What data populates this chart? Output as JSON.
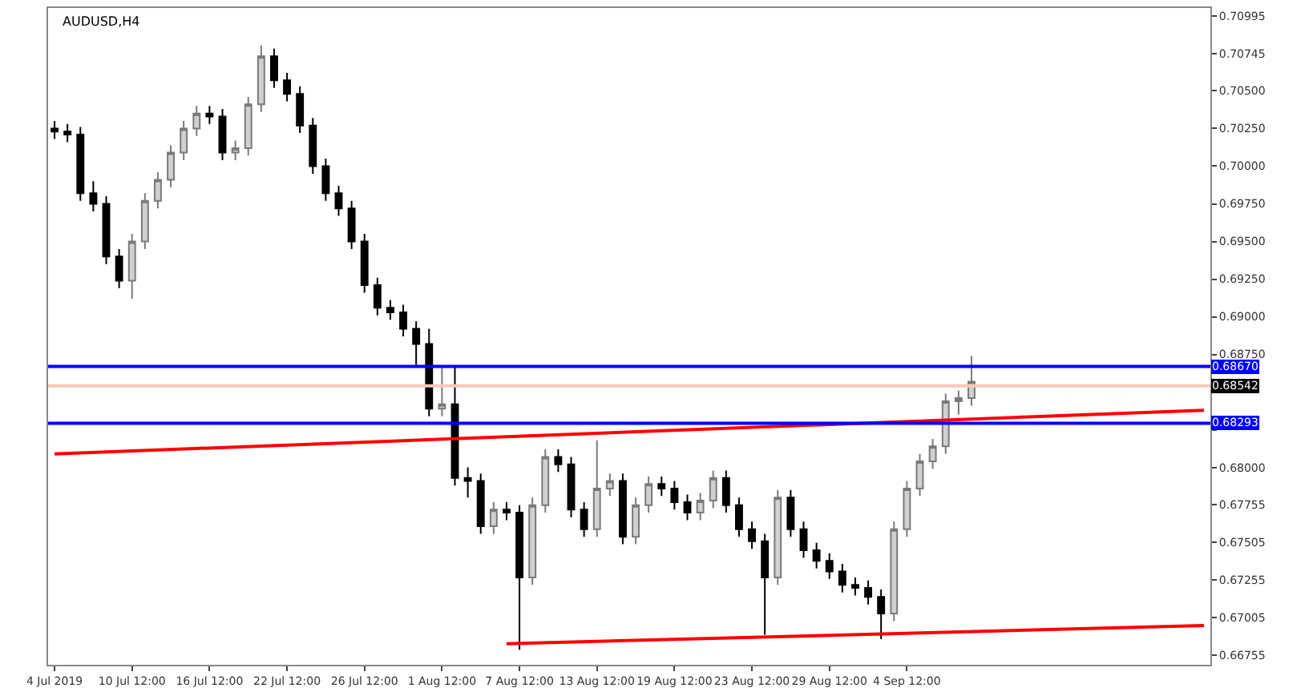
{
  "chart_data": {
    "type": "candlestick",
    "title": "AUDUSD,H4",
    "categories": [
      "4 Jul 2019",
      null,
      null,
      null,
      null,
      null,
      "10 Jul 12:00",
      null,
      null,
      null,
      null,
      null,
      "16 Jul 12:00",
      null,
      null,
      null,
      null,
      null,
      "22 Jul 12:00",
      null,
      null,
      null,
      null,
      null,
      "26 Jul 12:00",
      null,
      null,
      null,
      null,
      null,
      "1 Aug 12:00",
      null,
      null,
      null,
      null,
      null,
      "7 Aug 12:00",
      null,
      null,
      null,
      null,
      null,
      "13 Aug 12:00",
      null,
      null,
      null,
      null,
      null,
      "19 Aug 12:00",
      null,
      null,
      null,
      null,
      null,
      "23 Aug 12:00",
      null,
      null,
      null,
      null,
      null,
      "29 Aug 12:00",
      null,
      null,
      null,
      null,
      null,
      "4 Sep 12:00",
      null,
      null,
      null,
      null,
      null,
      null,
      null,
      null,
      null,
      null,
      null,
      null,
      null,
      null,
      null,
      null,
      null,
      null,
      null,
      null,
      null,
      null,
      null
    ],
    "ohlc": [
      [
        0.7025,
        0.703,
        0.7018,
        0.7023
      ],
      [
        0.7023,
        0.7028,
        0.7016,
        0.7021
      ],
      [
        0.7021,
        0.7026,
        0.6977,
        0.6982
      ],
      [
        0.6982,
        0.699,
        0.697,
        0.6975
      ],
      [
        0.6975,
        0.698,
        0.6935,
        0.694
      ],
      [
        0.694,
        0.6945,
        0.6919,
        0.6924
      ],
      [
        0.6924,
        0.6955,
        0.6912,
        0.695
      ],
      [
        0.695,
        0.6982,
        0.6945,
        0.6977
      ],
      [
        0.6977,
        0.6996,
        0.6972,
        0.6991
      ],
      [
        0.6991,
        0.7014,
        0.6986,
        0.7009
      ],
      [
        0.7009,
        0.703,
        0.7004,
        0.7025
      ],
      [
        0.7025,
        0.704,
        0.702,
        0.7035
      ],
      [
        0.7035,
        0.704,
        0.7028,
        0.7033
      ],
      [
        0.7033,
        0.7038,
        0.7004,
        0.7009
      ],
      [
        0.7009,
        0.7017,
        0.7004,
        0.7012
      ],
      [
        0.7012,
        0.7046,
        0.7007,
        0.7041
      ],
      [
        0.7041,
        0.708,
        0.7036,
        0.7073
      ],
      [
        0.7073,
        0.7078,
        0.7052,
        0.7057
      ],
      [
        0.7057,
        0.7062,
        0.7043,
        0.7048
      ],
      [
        0.7048,
        0.7053,
        0.7022,
        0.7027
      ],
      [
        0.7027,
        0.7032,
        0.6995,
        0.7
      ],
      [
        0.7,
        0.7005,
        0.6977,
        0.6982
      ],
      [
        0.6982,
        0.6987,
        0.6967,
        0.6972
      ],
      [
        0.6972,
        0.6977,
        0.6945,
        0.695
      ],
      [
        0.695,
        0.6955,
        0.6916,
        0.6921
      ],
      [
        0.6921,
        0.6926,
        0.6901,
        0.6906
      ],
      [
        0.6906,
        0.6911,
        0.6898,
        0.6903
      ],
      [
        0.6903,
        0.6908,
        0.6887,
        0.6892
      ],
      [
        0.6892,
        0.6897,
        0.6868,
        0.6882
      ],
      [
        0.6882,
        0.6892,
        0.6834,
        0.6839
      ],
      [
        0.6839,
        0.6867,
        0.6834,
        0.6842
      ],
      [
        0.6842,
        0.6867,
        0.6788,
        0.6793
      ],
      [
        0.6793,
        0.68,
        0.678,
        0.6791
      ],
      [
        0.6791,
        0.6796,
        0.6756,
        0.6761
      ],
      [
        0.6761,
        0.6777,
        0.6756,
        0.6772
      ],
      [
        0.6772,
        0.6777,
        0.6765,
        0.677
      ],
      [
        0.677,
        0.6775,
        0.6679,
        0.6727
      ],
      [
        0.6727,
        0.678,
        0.6722,
        0.6775
      ],
      [
        0.6775,
        0.6812,
        0.677,
        0.6807
      ],
      [
        0.6807,
        0.6812,
        0.6797,
        0.6802
      ],
      [
        0.6802,
        0.6807,
        0.6767,
        0.6772
      ],
      [
        0.6772,
        0.6777,
        0.6754,
        0.6759
      ],
      [
        0.6759,
        0.6818,
        0.6754,
        0.6786
      ],
      [
        0.6786,
        0.6796,
        0.6781,
        0.6791
      ],
      [
        0.6791,
        0.6796,
        0.6749,
        0.6754
      ],
      [
        0.6754,
        0.678,
        0.6749,
        0.6775
      ],
      [
        0.6775,
        0.6794,
        0.677,
        0.6789
      ],
      [
        0.6789,
        0.6794,
        0.6781,
        0.6786
      ],
      [
        0.6786,
        0.6791,
        0.6772,
        0.6777
      ],
      [
        0.6777,
        0.6782,
        0.6765,
        0.677
      ],
      [
        0.677,
        0.6783,
        0.6765,
        0.6778
      ],
      [
        0.6778,
        0.6798,
        0.6773,
        0.6793
      ],
      [
        0.6793,
        0.6798,
        0.677,
        0.6775
      ],
      [
        0.6775,
        0.678,
        0.6754,
        0.6759
      ],
      [
        0.6759,
        0.6764,
        0.6746,
        0.6751
      ],
      [
        0.6751,
        0.6756,
        0.6689,
        0.6727
      ],
      [
        0.6727,
        0.6785,
        0.6722,
        0.678
      ],
      [
        0.678,
        0.6785,
        0.6754,
        0.6759
      ],
      [
        0.6759,
        0.6764,
        0.674,
        0.6745
      ],
      [
        0.6745,
        0.675,
        0.6733,
        0.6738
      ],
      [
        0.6738,
        0.6743,
        0.6726,
        0.6731
      ],
      [
        0.6731,
        0.6736,
        0.6717,
        0.6722
      ],
      [
        0.6722,
        0.6727,
        0.6715,
        0.672
      ],
      [
        0.672,
        0.6725,
        0.6709,
        0.6714
      ],
      [
        0.6714,
        0.6719,
        0.6686,
        0.6703
      ],
      [
        0.6703,
        0.6764,
        0.6698,
        0.6759
      ],
      [
        0.6759,
        0.6791,
        0.6754,
        0.6786
      ],
      [
        0.6786,
        0.6809,
        0.6781,
        0.6804
      ],
      [
        0.6804,
        0.6819,
        0.6799,
        0.6814
      ],
      [
        0.6814,
        0.6849,
        0.6809,
        0.6844
      ],
      [
        0.6844,
        0.6851,
        0.6835,
        0.6846
      ],
      [
        0.6846,
        0.6874,
        0.6841,
        0.6857
      ],
      null,
      null,
      null,
      null,
      null,
      null,
      null,
      null,
      null,
      null,
      null,
      null,
      null,
      null,
      null,
      null,
      null,
      null
    ],
    "series": [
      {
        "type": "line",
        "color": "#ff0000",
        "values": [
          0.6809,
          null,
          null,
          null,
          null,
          null,
          null,
          null,
          null,
          null,
          null,
          null,
          null,
          null,
          null,
          null,
          null,
          null,
          null,
          null,
          null,
          null,
          null,
          null,
          null,
          null,
          null,
          null,
          null,
          null,
          null,
          null,
          null,
          null,
          null,
          null,
          null,
          null,
          null,
          null,
          null,
          null,
          null,
          null,
          null,
          null,
          null,
          null,
          null,
          null,
          null,
          null,
          null,
          null,
          null,
          null,
          null,
          null,
          null,
          null,
          null,
          null,
          null,
          null,
          null,
          null,
          null,
          null,
          null,
          null,
          null,
          null,
          null,
          null,
          null,
          null,
          null,
          null,
          null,
          null,
          null,
          null,
          null,
          null,
          null,
          null,
          null,
          null,
          null,
          0.6838
        ]
      },
      {
        "type": "line",
        "color": "#ff0000",
        "values": [
          null,
          null,
          null,
          null,
          null,
          null,
          null,
          null,
          null,
          null,
          null,
          null,
          null,
          null,
          null,
          null,
          null,
          null,
          null,
          null,
          null,
          null,
          null,
          null,
          null,
          null,
          null,
          null,
          null,
          null,
          null,
          null,
          null,
          null,
          null,
          0.6683,
          null,
          null,
          null,
          null,
          null,
          null,
          null,
          null,
          null,
          null,
          null,
          null,
          null,
          null,
          null,
          null,
          null,
          null,
          null,
          null,
          null,
          null,
          null,
          null,
          null,
          null,
          null,
          null,
          null,
          null,
          null,
          null,
          null,
          null,
          null,
          null,
          null,
          null,
          null,
          null,
          null,
          null,
          null,
          null,
          null,
          null,
          null,
          null,
          null,
          null,
          null,
          null,
          null,
          0.6695
        ]
      }
    ],
    "ref_lines": [
      {
        "axis": "y",
        "value": 0.6867,
        "label": "0.68670",
        "color": "#0000ff"
      },
      {
        "axis": "y",
        "value": 0.68293,
        "label": "0.68293",
        "color": "#0000ff"
      },
      {
        "axis": "y",
        "value": 0.68542,
        "label": "0.68542",
        "color": "#f8c8b8"
      }
    ],
    "ylim": [
      0.6669,
      0.7105
    ],
    "yticks": [
      0.70995,
      0.70745,
      {
        "value": 0.705,
        "label": "0.70500"
      },
      {
        "value": 0.7025,
        "label": "0.70250"
      },
      {
        "value": 0.7,
        "label": "0.70000"
      },
      {
        "value": 0.6975,
        "label": "0.69750"
      },
      {
        "value": 0.695,
        "label": "0.69500"
      },
      {
        "value": 0.6925,
        "label": "0.69250"
      },
      {
        "value": 0.69,
        "label": "0.69000"
      },
      {
        "value": 0.6875,
        "label": "0.68750"
      },
      {
        "value": 0.685,
        "label": null
      },
      {
        "value": 0.6825,
        "label": null
      },
      {
        "value": 0.68,
        "label": "0.68000"
      },
      0.67755,
      0.67505,
      0.67255,
      0.67005,
      0.66755
    ]
  }
}
